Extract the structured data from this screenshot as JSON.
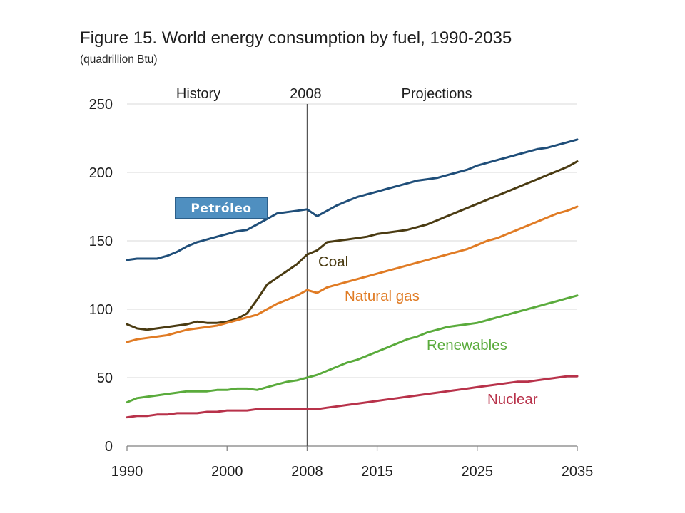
{
  "chart_data": {
    "type": "line",
    "title": "Figure 15. World energy consumption by fuel, 1990-2035",
    "subtitle": "(quadrillion Btu)",
    "xlabel": "",
    "ylabel": "",
    "xlim": [
      1990,
      2035
    ],
    "ylim": [
      0,
      250
    ],
    "x_ticks": [
      1990,
      2000,
      2008,
      2015,
      2025,
      2035
    ],
    "y_ticks": [
      0,
      50,
      100,
      150,
      200,
      250
    ],
    "grid": true,
    "divider": {
      "year": 2008,
      "label": "2008"
    },
    "regions": {
      "left": "History",
      "right": "Projections"
    },
    "annotation": {
      "text": "Petróleo",
      "fill": "#4f8fc0",
      "border": "#2c5f8a"
    },
    "series": [
      {
        "name": "Petróleo",
        "label_text": "",
        "color": "#1f4e79",
        "x": [
          1990,
          1991,
          1992,
          1993,
          1994,
          1995,
          1996,
          1997,
          1998,
          1999,
          2000,
          2001,
          2002,
          2003,
          2004,
          2005,
          2006,
          2007,
          2008,
          2009,
          2010,
          2011,
          2012,
          2013,
          2014,
          2015,
          2016,
          2017,
          2018,
          2019,
          2020,
          2021,
          2022,
          2023,
          2024,
          2025,
          2026,
          2027,
          2028,
          2029,
          2030,
          2031,
          2032,
          2033,
          2034,
          2035
        ],
        "values": [
          136,
          137,
          137,
          137,
          139,
          142,
          146,
          149,
          151,
          153,
          155,
          157,
          158,
          162,
          166,
          170,
          171,
          172,
          173,
          168,
          172,
          176,
          179,
          182,
          184,
          186,
          188,
          190,
          192,
          194,
          195,
          196,
          198,
          200,
          202,
          205,
          207,
          209,
          211,
          213,
          215,
          217,
          218,
          220,
          222,
          224
        ]
      },
      {
        "name": "Coal",
        "label_text": "Coal",
        "color": "#4a3b12",
        "x": [
          1990,
          1991,
          1992,
          1993,
          1994,
          1995,
          1996,
          1997,
          1998,
          1999,
          2000,
          2001,
          2002,
          2003,
          2004,
          2005,
          2006,
          2007,
          2008,
          2009,
          2010,
          2011,
          2012,
          2013,
          2014,
          2015,
          2016,
          2017,
          2018,
          2019,
          2020,
          2021,
          2022,
          2023,
          2024,
          2025,
          2026,
          2027,
          2028,
          2029,
          2030,
          2031,
          2032,
          2033,
          2034,
          2035
        ],
        "values": [
          89,
          86,
          85,
          86,
          87,
          88,
          89,
          91,
          90,
          90,
          91,
          93,
          97,
          107,
          118,
          123,
          128,
          133,
          140,
          143,
          149,
          150,
          151,
          152,
          153,
          155,
          156,
          157,
          158,
          160,
          162,
          165,
          168,
          171,
          174,
          177,
          180,
          183,
          186,
          189,
          192,
          195,
          198,
          201,
          204,
          208
        ]
      },
      {
        "name": "Natural gas",
        "label_text": "Natural gas",
        "color": "#e07b24",
        "x": [
          1990,
          1991,
          1992,
          1993,
          1994,
          1995,
          1996,
          1997,
          1998,
          1999,
          2000,
          2001,
          2002,
          2003,
          2004,
          2005,
          2006,
          2007,
          2008,
          2009,
          2010,
          2011,
          2012,
          2013,
          2014,
          2015,
          2016,
          2017,
          2018,
          2019,
          2020,
          2021,
          2022,
          2023,
          2024,
          2025,
          2026,
          2027,
          2028,
          2029,
          2030,
          2031,
          2032,
          2033,
          2034,
          2035
        ],
        "values": [
          76,
          78,
          79,
          80,
          81,
          83,
          85,
          86,
          87,
          88,
          90,
          92,
          94,
          96,
          100,
          104,
          107,
          110,
          114,
          112,
          116,
          118,
          120,
          122,
          124,
          126,
          128,
          130,
          132,
          134,
          136,
          138,
          140,
          142,
          144,
          147,
          150,
          152,
          155,
          158,
          161,
          164,
          167,
          170,
          172,
          175
        ]
      },
      {
        "name": "Renewables",
        "label_text": "Renewables",
        "color": "#5aab3c",
        "x": [
          1990,
          1991,
          1992,
          1993,
          1994,
          1995,
          1996,
          1997,
          1998,
          1999,
          2000,
          2001,
          2002,
          2003,
          2004,
          2005,
          2006,
          2007,
          2008,
          2009,
          2010,
          2011,
          2012,
          2013,
          2014,
          2015,
          2016,
          2017,
          2018,
          2019,
          2020,
          2021,
          2022,
          2023,
          2024,
          2025,
          2026,
          2027,
          2028,
          2029,
          2030,
          2031,
          2032,
          2033,
          2034,
          2035
        ],
        "values": [
          32,
          35,
          36,
          37,
          38,
          39,
          40,
          40,
          40,
          41,
          41,
          42,
          42,
          41,
          43,
          45,
          47,
          48,
          50,
          52,
          55,
          58,
          61,
          63,
          66,
          69,
          72,
          75,
          78,
          80,
          83,
          85,
          87,
          88,
          89,
          90,
          92,
          94,
          96,
          98,
          100,
          102,
          104,
          106,
          108,
          110
        ]
      },
      {
        "name": "Nuclear",
        "label_text": "Nuclear",
        "color": "#b8324a",
        "x": [
          1990,
          1991,
          1992,
          1993,
          1994,
          1995,
          1996,
          1997,
          1998,
          1999,
          2000,
          2001,
          2002,
          2003,
          2004,
          2005,
          2006,
          2007,
          2008,
          2009,
          2010,
          2011,
          2012,
          2013,
          2014,
          2015,
          2016,
          2017,
          2018,
          2019,
          2020,
          2021,
          2022,
          2023,
          2024,
          2025,
          2026,
          2027,
          2028,
          2029,
          2030,
          2031,
          2032,
          2033,
          2034,
          2035
        ],
        "values": [
          21,
          22,
          22,
          23,
          23,
          24,
          24,
          24,
          25,
          25,
          26,
          26,
          26,
          27,
          27,
          27,
          27,
          27,
          27,
          27,
          28,
          29,
          30,
          31,
          32,
          33,
          34,
          35,
          36,
          37,
          38,
          39,
          40,
          41,
          42,
          43,
          44,
          45,
          46,
          47,
          47,
          48,
          49,
          50,
          51,
          51
        ]
      }
    ]
  }
}
